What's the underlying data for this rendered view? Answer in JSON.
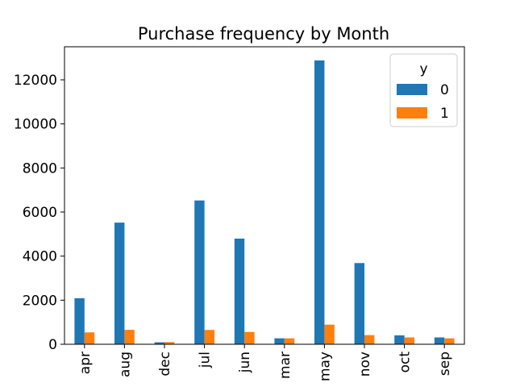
{
  "chart_data": {
    "type": "bar",
    "title": "Purchase frequency by Month",
    "xlabel": "",
    "ylabel": "",
    "categories": [
      "apr",
      "aug",
      "dec",
      "jul",
      "jun",
      "mar",
      "may",
      "nov",
      "oct",
      "sep"
    ],
    "series": [
      {
        "name": "0",
        "color": "#1f77b4",
        "values": [
          2090,
          5520,
          90,
          6525,
          4795,
          270,
          12880,
          3685,
          405,
          310
        ]
      },
      {
        "name": "1",
        "color": "#ff7f0e",
        "values": [
          540,
          655,
          100,
          650,
          560,
          270,
          890,
          415,
          310,
          270
        ]
      }
    ],
    "ylim": [
      0,
      13500
    ],
    "yticks": [
      0,
      2000,
      4000,
      6000,
      8000,
      10000,
      12000
    ],
    "legend": {
      "title": "y",
      "position": "top-right"
    },
    "grid": false
  }
}
